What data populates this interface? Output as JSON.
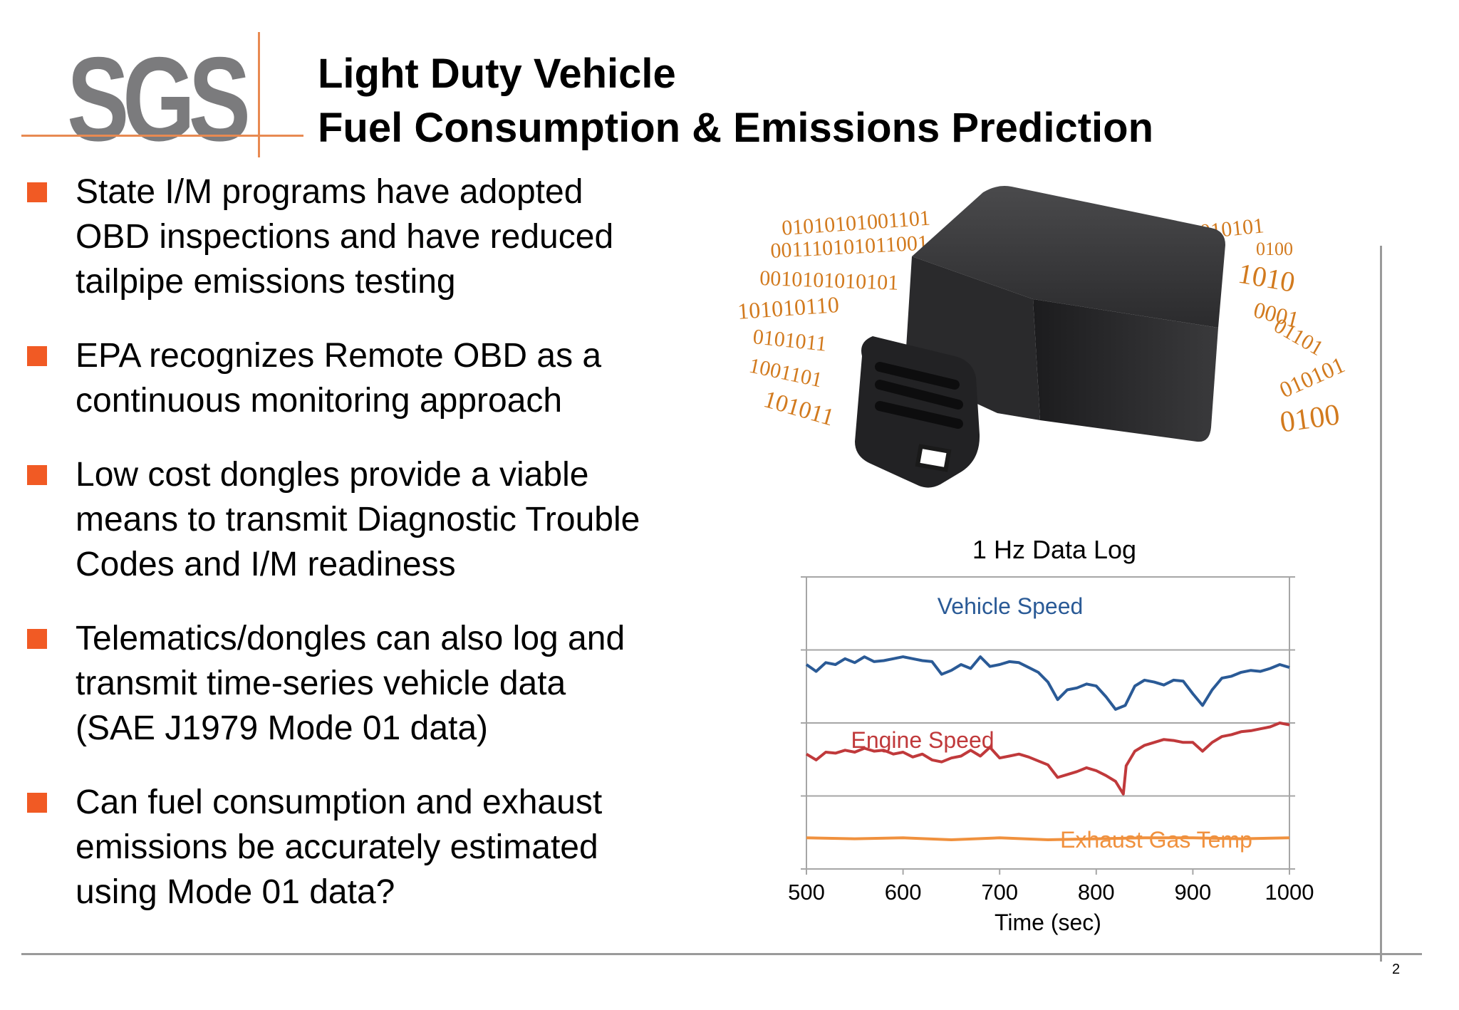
{
  "logo": {
    "text": "SGS",
    "accent_color": "#e88a52",
    "text_color": "#7b7b7d"
  },
  "title": {
    "line1": "Light Duty Vehicle",
    "line2": "Fuel Consumption & Emissions Prediction"
  },
  "bullet_color": "#f15a24",
  "bullets": [
    {
      "lines": [
        "State I/M programs have adopted",
        "OBD inspections and have reduced",
        "tailpipe emissions testing"
      ]
    },
    {
      "lines": [
        "EPA recognizes Remote OBD as a",
        "continuous monitoring approach"
      ]
    },
    {
      "lines": [
        "Low cost dongles provide a viable",
        "means to transmit Diagnostic Trouble",
        "Codes and I/M readiness"
      ]
    },
    {
      "lines": [
        "Telematics/dongles can also log and",
        "transmit time-series vehicle data",
        "(SAE J1979 Mode 01 data)"
      ]
    },
    {
      "lines": [
        "Can fuel consumption and exhaust",
        "emissions be accurately estimated",
        "using Mode 01 data?"
      ]
    }
  ],
  "dongle_image": {
    "binary_color": "#d27a1e",
    "binary_left": [
      "01010101001101",
      "001110101011001",
      "0010101010101",
      "101010110",
      "0101011",
      "1001101",
      "101011"
    ],
    "binary_right": [
      "01100010101",
      "0100",
      "1010",
      "0001",
      "01101",
      "010101",
      "0100"
    ]
  },
  "chart_data": {
    "type": "line",
    "title": "1 Hz Data Log",
    "xlabel": "Time (sec)",
    "ylabel": "",
    "xlim": [
      500,
      1000
    ],
    "x_ticks": [
      "500",
      "600",
      "700",
      "800",
      "900",
      "1000"
    ],
    "grid": true,
    "series": [
      {
        "name": "Vehicle Speed",
        "color": "#2a5a96",
        "x": [
          500,
          510,
          520,
          530,
          540,
          550,
          560,
          570,
          580,
          590,
          600,
          610,
          620,
          630,
          640,
          650,
          660,
          670,
          680,
          690,
          700,
          710,
          720,
          730,
          740,
          750,
          760,
          770,
          780,
          790,
          800,
          810,
          820,
          830,
          840,
          850,
          860,
          870,
          880,
          890,
          900,
          910,
          920,
          930,
          940,
          950,
          960,
          970,
          980,
          990,
          1000
        ],
        "values": [
          3.0,
          2.3,
          3.2,
          3.0,
          3.6,
          3.2,
          3.8,
          3.3,
          3.4,
          3.6,
          3.8,
          3.6,
          3.4,
          3.3,
          2.0,
          2.4,
          3.0,
          2.6,
          3.8,
          2.8,
          3.0,
          3.3,
          3.2,
          2.7,
          2.2,
          1.2,
          -0.6,
          0.4,
          0.6,
          1.0,
          0.8,
          -0.3,
          -1.6,
          -1.2,
          0.8,
          1.4,
          1.2,
          0.9,
          1.4,
          1.3,
          0.0,
          -1.2,
          0.4,
          1.6,
          1.8,
          2.2,
          2.4,
          2.3,
          2.6,
          3.0,
          2.7
        ]
      },
      {
        "name": "Engine Speed",
        "color": "#c0393b",
        "x": [
          500,
          510,
          520,
          530,
          540,
          550,
          560,
          570,
          580,
          590,
          600,
          610,
          620,
          630,
          640,
          650,
          660,
          670,
          680,
          690,
          700,
          710,
          720,
          730,
          740,
          750,
          760,
          770,
          780,
          790,
          800,
          810,
          820,
          828,
          831,
          840,
          850,
          860,
          870,
          880,
          890,
          900,
          910,
          920,
          930,
          940,
          950,
          960,
          970,
          980,
          990,
          1000
        ],
        "values": [
          -6.2,
          -6.8,
          -6.0,
          -6.1,
          -5.8,
          -6.0,
          -5.6,
          -5.9,
          -5.8,
          -6.2,
          -6.0,
          -6.5,
          -6.2,
          -6.8,
          -7.0,
          -6.6,
          -6.4,
          -5.8,
          -6.4,
          -5.5,
          -6.6,
          -6.4,
          -6.2,
          -6.5,
          -6.9,
          -7.3,
          -8.6,
          -8.3,
          -8.0,
          -7.6,
          -7.9,
          -8.4,
          -9.0,
          -10.3,
          -7.4,
          -5.9,
          -5.3,
          -5.0,
          -4.7,
          -4.8,
          -5.0,
          -5.0,
          -5.9,
          -5.0,
          -4.4,
          -4.2,
          -3.9,
          -3.8,
          -3.6,
          -3.4,
          -3.0,
          -3.2
        ]
      },
      {
        "name": "Exhaust Gas Temp",
        "color": "#f0913e",
        "x": [
          500,
          550,
          600,
          650,
          700,
          750,
          800,
          850,
          900,
          950,
          1000
        ],
        "values": [
          -14.8,
          -14.9,
          -14.8,
          -15.0,
          -14.8,
          -15.0,
          -14.9,
          -14.8,
          -14.8,
          -14.9,
          -14.8
        ]
      }
    ],
    "label_color_title": "#000000",
    "grid_color": "#a6a6a6"
  },
  "page_number": "2"
}
